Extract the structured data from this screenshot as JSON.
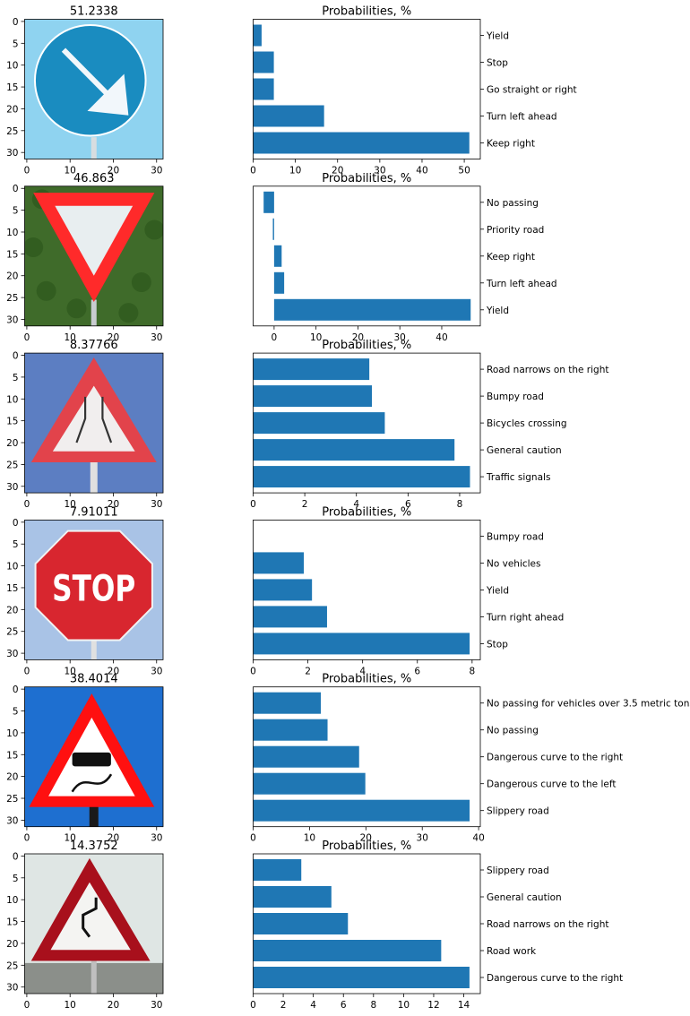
{
  "chart_data": [
    {
      "type": "bar",
      "image_title": "51.2338",
      "image_sign": "keep-right",
      "title": "Probabilities, %",
      "categories": [
        "Yield",
        "Stop",
        "Go straight or right",
        "Turn left ahead",
        "Keep right"
      ],
      "values": [
        2.0,
        4.9,
        4.9,
        16.8,
        51.2
      ],
      "xlim": [
        0,
        53.8
      ],
      "xticks": [
        0,
        10,
        20,
        30,
        40,
        50
      ],
      "image_ticks": [
        0,
        5,
        10,
        15,
        20,
        25,
        30
      ]
    },
    {
      "type": "bar",
      "image_title": "46.863",
      "image_sign": "yield",
      "title": "Probabilities, %",
      "categories": [
        "No passing",
        "Priority road",
        "Keep right",
        "Turn left ahead",
        "Yield"
      ],
      "values": [
        -2.5,
        -0.3,
        1.8,
        2.4,
        46.9
      ],
      "xlim": [
        -5.0,
        49.2
      ],
      "xticks": [
        0,
        10,
        20,
        30,
        40
      ],
      "image_ticks": [
        0,
        5,
        10,
        15,
        20,
        25,
        30
      ]
    },
    {
      "type": "bar",
      "image_title": "8.37766",
      "image_sign": "road-narrows",
      "title": "Probabilities, %",
      "categories": [
        "Road narrows on the right",
        "Bumpy road",
        "Bicycles crossing",
        "General caution",
        "Traffic signals"
      ],
      "values": [
        4.5,
        4.6,
        5.1,
        7.8,
        8.4
      ],
      "xlim": [
        0,
        8.8
      ],
      "xticks": [
        0,
        2,
        4,
        6,
        8
      ],
      "image_ticks": [
        0,
        5,
        10,
        15,
        20,
        25,
        30
      ]
    },
    {
      "type": "bar",
      "image_title": "7.91011",
      "image_sign": "stop",
      "title": "Probabilities, %",
      "categories": [
        "Bumpy road",
        "No vehicles",
        "Yield",
        "Turn right ahead",
        "Stop"
      ],
      "values": [
        0.0,
        1.85,
        2.15,
        2.7,
        7.91
      ],
      "xlim": [
        0,
        8.3
      ],
      "xticks": [
        0,
        2,
        4,
        6,
        8
      ],
      "image_ticks": [
        0,
        5,
        10,
        15,
        20,
        25,
        30
      ]
    },
    {
      "type": "bar",
      "image_title": "38.4014",
      "image_sign": "slippery-road",
      "title": "Probabilities, %",
      "categories": [
        "No passing for vehicles over 3.5 metric tons",
        "No passing",
        "Dangerous curve to the right",
        "Dangerous curve to the left",
        "Slippery road"
      ],
      "values": [
        12.0,
        13.2,
        18.8,
        19.9,
        38.4
      ],
      "xlim": [
        0,
        40.3
      ],
      "xticks": [
        0,
        10,
        20,
        30,
        40
      ],
      "image_ticks": [
        0,
        5,
        10,
        15,
        20,
        25,
        30
      ]
    },
    {
      "type": "bar",
      "image_title": "14.3752",
      "image_sign": "double-curve",
      "title": "Probabilities, %",
      "categories": [
        "Slippery road",
        "General caution",
        "Road narrows on the right",
        "Road work",
        "Dangerous curve to the right"
      ],
      "values": [
        3.2,
        5.2,
        6.3,
        12.5,
        14.38
      ],
      "xlim": [
        0,
        15.1
      ],
      "xticks": [
        0,
        2,
        4,
        6,
        8,
        10,
        12,
        14
      ],
      "image_ticks": [
        0,
        5,
        10,
        15,
        20,
        25,
        30
      ]
    }
  ],
  "colors": {
    "bar": "#1f77b4",
    "axes": "#000000",
    "text": "#000000"
  }
}
